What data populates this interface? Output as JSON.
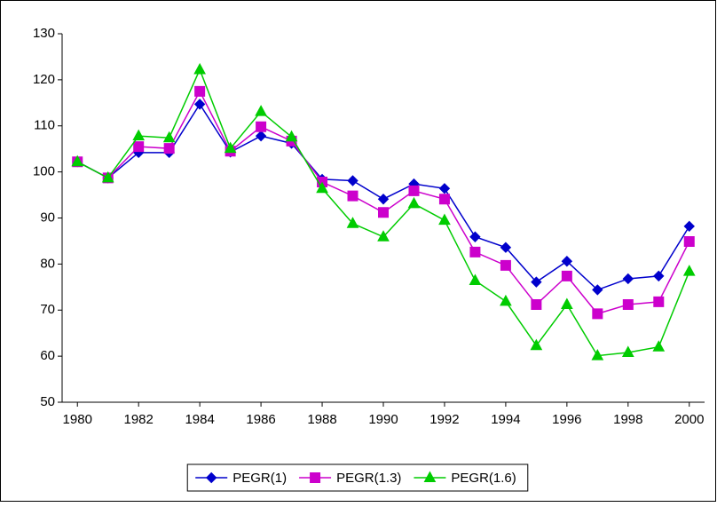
{
  "chart_data": {
    "type": "line",
    "x": [
      1980,
      1981,
      1982,
      1983,
      1984,
      1985,
      1986,
      1987,
      1988,
      1989,
      1990,
      1991,
      1992,
      1993,
      1994,
      1995,
      1996,
      1997,
      1998,
      1999,
      2000
    ],
    "series": [
      {
        "name": "PEGR(1)",
        "color": "#0000cc",
        "marker": "diamond",
        "values": [
          102.2,
          98.7,
          104.2,
          104.2,
          114.7,
          104.3,
          107.8,
          106.2,
          98.4,
          98.1,
          94.1,
          97.4,
          96.4,
          85.9,
          83.6,
          76.1,
          80.6,
          74.4,
          76.8,
          77.4,
          88.2
        ]
      },
      {
        "name": "PEGR(1.3)",
        "color": "#cc00cc",
        "marker": "square",
        "values": [
          102.2,
          98.7,
          105.5,
          105.1,
          117.5,
          104.5,
          109.8,
          106.7,
          97.8,
          94.8,
          91.2,
          95.9,
          94.1,
          82.6,
          79.7,
          71.2,
          77.4,
          69.2,
          71.2,
          71.8,
          84.9
        ]
      },
      {
        "name": "PEGR(1.6)",
        "color": "#00cc00",
        "marker": "triangle",
        "values": [
          102.2,
          98.7,
          107.8,
          107.4,
          122.2,
          105.1,
          113.1,
          107.6,
          96.4,
          88.8,
          85.9,
          93.1,
          89.5,
          76.4,
          71.9,
          62.3,
          71.2,
          60.1,
          60.8,
          62.0,
          78.4
        ]
      }
    ],
    "xlim": [
      1979.5,
      2000.5
    ],
    "xticks": [
      1980,
      1982,
      1984,
      1986,
      1988,
      1990,
      1992,
      1994,
      1996,
      1998,
      2000
    ],
    "ylim": [
      50,
      130
    ],
    "yticks": [
      50,
      60,
      70,
      80,
      90,
      100,
      110,
      120,
      130
    ],
    "legend": "bottom"
  }
}
